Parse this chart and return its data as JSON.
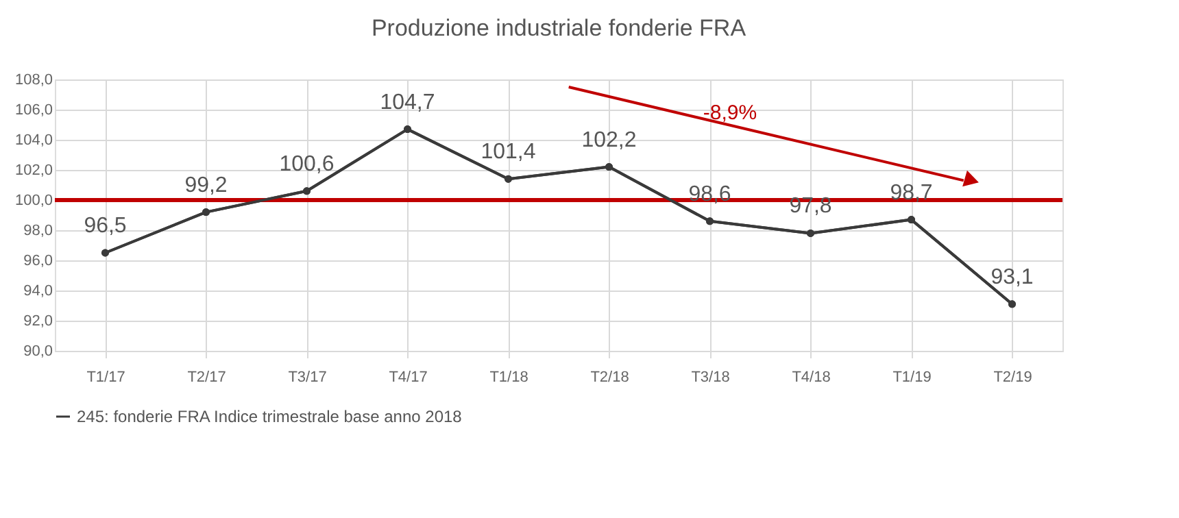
{
  "chart_data": {
    "type": "line",
    "title": "Produzione industriale fonderie FRA",
    "categories": [
      "T1/17",
      "T2/17",
      "T3/17",
      "T4/17",
      "T1/18",
      "T2/18",
      "T3/18",
      "T4/18",
      "T1/19",
      "T2/19"
    ],
    "series": [
      {
        "name": "245: fonderie FRA Indice trimestrale base anno 2018",
        "color": "#3a3a3a",
        "values": [
          96.5,
          99.2,
          100.6,
          104.7,
          101.4,
          102.2,
          98.6,
          97.8,
          98.7,
          93.1
        ],
        "value_labels": [
          "96,5",
          "99,2",
          "100,6",
          "104,7",
          "101,4",
          "102,2",
          "98,6",
          "97,8",
          "98,7",
          "93,1"
        ]
      }
    ],
    "ylim": [
      90,
      108
    ],
    "yticks": [
      {
        "value": 90,
        "label": "90,0"
      },
      {
        "value": 92,
        "label": "92,0"
      },
      {
        "value": 94,
        "label": "94,0"
      },
      {
        "value": 96,
        "label": "96,0"
      },
      {
        "value": 98,
        "label": "98,0"
      },
      {
        "value": 100,
        "label": "100,0"
      },
      {
        "value": 102,
        "label": "102,0"
      },
      {
        "value": 104,
        "label": "104,0"
      },
      {
        "value": 106,
        "label": "106,0"
      },
      {
        "value": 108,
        "label": "108,0"
      }
    ],
    "ref_lines": [
      {
        "axis": "y",
        "value": 100,
        "color": "#c00000"
      }
    ],
    "annotations": [
      "-8,9%"
    ],
    "grid": true,
    "legend": "bottom",
    "marker": "circle",
    "line_style": "solid"
  }
}
